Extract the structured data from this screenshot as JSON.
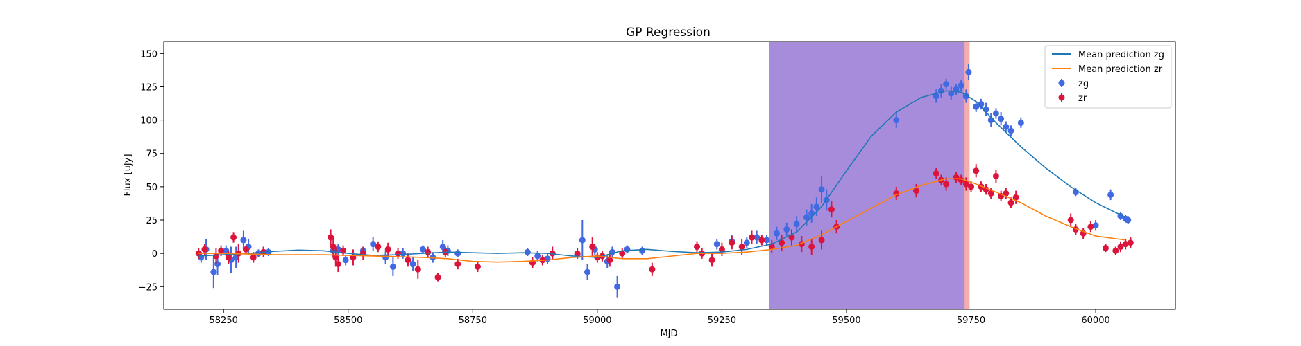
{
  "chart_data": {
    "type": "scatter",
    "title": "GP Regression",
    "xlabel": "MJD",
    "ylabel": "Flux [uJy]",
    "xlim": [
      58130,
      60160
    ],
    "ylim": [
      -42,
      159
    ],
    "xticks": [
      58250,
      58500,
      58750,
      59000,
      59250,
      59500,
      59750,
      60000
    ],
    "yticks": [
      -25,
      0,
      25,
      50,
      75,
      100,
      125,
      150
    ],
    "grid": false,
    "legend_position": "top-right",
    "shaded_regions": [
      {
        "x0": 59345,
        "x1": 59747,
        "color": "#f28080",
        "opacity": 0.65
      },
      {
        "x0": 59345,
        "x1": 59737,
        "color": "#7b7bf5",
        "opacity": 0.65
      }
    ],
    "series": [
      {
        "name": "Mean prediction zg",
        "kind": "line",
        "color": "#1f77b4",
        "x": [
          58200,
          58250,
          58300,
          58350,
          58400,
          58450,
          58500,
          58550,
          58600,
          58650,
          58700,
          58750,
          58800,
          58850,
          58900,
          58950,
          59000,
          59050,
          59100,
          59150,
          59200,
          59250,
          59300,
          59350,
          59400,
          59450,
          59500,
          59550,
          59600,
          59650,
          59700,
          59730,
          59760,
          59800,
          59850,
          59900,
          59950,
          60000,
          60060
        ],
        "y": [
          -2,
          -1,
          0,
          1.5,
          2.5,
          2,
          0,
          -1.5,
          -1,
          0,
          1,
          0.5,
          0,
          0.5,
          0,
          -2,
          -3,
          2,
          3,
          1.5,
          0.5,
          1,
          3,
          7,
          16,
          35,
          62,
          88,
          106,
          117,
          122,
          121,
          114,
          98,
          80,
          64,
          50,
          38,
          27
        ]
      },
      {
        "name": "Mean prediction zr",
        "kind": "line",
        "color": "#ff7f0e",
        "x": [
          58200,
          58250,
          58300,
          58350,
          58400,
          58450,
          58500,
          58550,
          58600,
          58650,
          58700,
          58750,
          58800,
          58850,
          58900,
          58950,
          59000,
          59050,
          59100,
          59150,
          59200,
          59250,
          59300,
          59350,
          59400,
          59450,
          59500,
          59550,
          59600,
          59650,
          59700,
          59730,
          59760,
          59800,
          59850,
          59900,
          59950,
          60000,
          60060
        ],
        "y": [
          0,
          0,
          -0.5,
          -1,
          -1,
          -1,
          -1.5,
          -2,
          -2.5,
          -3,
          -4,
          -6,
          -6.5,
          -6,
          -5,
          -3,
          -2,
          -4,
          -4,
          -2,
          0,
          0,
          1,
          3,
          6,
          14,
          24,
          34,
          44,
          51,
          56,
          56,
          52,
          46,
          38,
          28,
          20,
          13,
          10
        ]
      },
      {
        "name": "zg",
        "kind": "errorbar",
        "color": "#4169e1",
        "x": [
          58205,
          58215,
          58230,
          58238,
          58255,
          58265,
          58275,
          58290,
          58300,
          58320,
          58340,
          58470,
          58480,
          58495,
          58530,
          58550,
          58575,
          58590,
          58610,
          58630,
          58650,
          58670,
          58690,
          58700,
          58720,
          58860,
          58880,
          58900,
          58960,
          58970,
          58980,
          58995,
          59020,
          59030,
          59040,
          59060,
          59090,
          59200,
          59240,
          59270,
          59300,
          59320,
          59340,
          59360,
          59380,
          59400,
          59420,
          59430,
          59440,
          59450,
          59460,
          59600,
          59680,
          59690,
          59700,
          59710,
          59720,
          59730,
          59740,
          59745,
          59760,
          59770,
          59780,
          59790,
          59800,
          59810,
          59820,
          59830,
          59850,
          59960,
          60000,
          60030,
          60050,
          60060,
          60065
        ],
        "y": [
          -3,
          3,
          -14,
          -8,
          2,
          -5,
          -3,
          10,
          5,
          0,
          1,
          2,
          3,
          -5,
          2,
          7,
          -3,
          -10,
          0,
          -8,
          3,
          -3,
          5,
          2,
          0,
          1,
          -2,
          -4,
          -1,
          10,
          -14,
          3,
          -6,
          1,
          -25,
          3,
          2,
          5,
          7,
          9,
          8,
          12,
          10,
          15,
          18,
          22,
          27,
          30,
          35,
          48,
          40,
          100,
          118,
          122,
          127,
          120,
          123,
          126,
          118,
          136,
          110,
          112,
          108,
          100,
          105,
          101,
          95,
          92,
          98,
          46,
          21,
          44,
          28,
          26,
          25
        ],
        "err": [
          4,
          8,
          12,
          8,
          4,
          10,
          8,
          7,
          6,
          3,
          3,
          4,
          4,
          4,
          3,
          5,
          5,
          7,
          4,
          5,
          3,
          4,
          5,
          4,
          3,
          3,
          4,
          4,
          3,
          15,
          6,
          4,
          5,
          4,
          8,
          3,
          3,
          4,
          4,
          5,
          4,
          5,
          4,
          5,
          5,
          6,
          6,
          7,
          7,
          10,
          8,
          6,
          5,
          5,
          4,
          5,
          4,
          4,
          5,
          6,
          4,
          4,
          5,
          5,
          4,
          5,
          4,
          4,
          4,
          3,
          4,
          4,
          3,
          3,
          3
        ]
      },
      {
        "name": "zr",
        "kind": "errorbar",
        "color": "#dc143c",
        "x": [
          58200,
          58212,
          58235,
          58245,
          58260,
          58270,
          58280,
          58295,
          58310,
          58330,
          58465,
          58470,
          58475,
          58480,
          58490,
          58510,
          58530,
          58560,
          58580,
          58600,
          58620,
          58640,
          58660,
          58680,
          58695,
          58720,
          58760,
          58870,
          58890,
          58910,
          58960,
          58990,
          59000,
          59010,
          59025,
          59050,
          59110,
          59200,
          59210,
          59230,
          59250,
          59270,
          59290,
          59310,
          59330,
          59350,
          59370,
          59390,
          59410,
          59430,
          59450,
          59470,
          59480,
          59600,
          59640,
          59680,
          59690,
          59700,
          59720,
          59730,
          59740,
          59750,
          59760,
          59770,
          59780,
          59790,
          59800,
          59810,
          59820,
          59830,
          59840,
          59950,
          59960,
          59975,
          59990,
          60020,
          60040,
          60050,
          60060,
          60070
        ],
        "y": [
          0,
          3,
          -2,
          2,
          -3,
          12,
          0,
          3,
          -3,
          1,
          12,
          5,
          -3,
          -8,
          2,
          -3,
          0,
          5,
          3,
          0,
          -5,
          -12,
          1,
          -18,
          1,
          -8,
          -10,
          -7,
          -5,
          0,
          0,
          5,
          -3,
          -2,
          -5,
          0,
          -12,
          5,
          0,
          -5,
          3,
          8,
          5,
          12,
          10,
          5,
          8,
          12,
          7,
          5,
          10,
          33,
          20,
          45,
          47,
          60,
          55,
          52,
          57,
          55,
          52,
          50,
          62,
          50,
          48,
          45,
          58,
          43,
          45,
          38,
          42,
          25,
          18,
          15,
          20,
          4,
          2,
          5,
          7,
          8
        ],
        "err": [
          4,
          4,
          6,
          4,
          5,
          4,
          7,
          3,
          4,
          4,
          6,
          8,
          7,
          6,
          4,
          6,
          5,
          4,
          5,
          4,
          5,
          7,
          4,
          3,
          4,
          4,
          4,
          4,
          4,
          5,
          4,
          7,
          4,
          4,
          5,
          4,
          5,
          4,
          4,
          5,
          5,
          5,
          6,
          5,
          4,
          5,
          6,
          6,
          6,
          6,
          7,
          6,
          5,
          5,
          5,
          4,
          4,
          5,
          4,
          4,
          5,
          4,
          5,
          4,
          4,
          4,
          5,
          4,
          4,
          4,
          5,
          5,
          4,
          4,
          4,
          3,
          3,
          4,
          4,
          4
        ]
      }
    ]
  }
}
